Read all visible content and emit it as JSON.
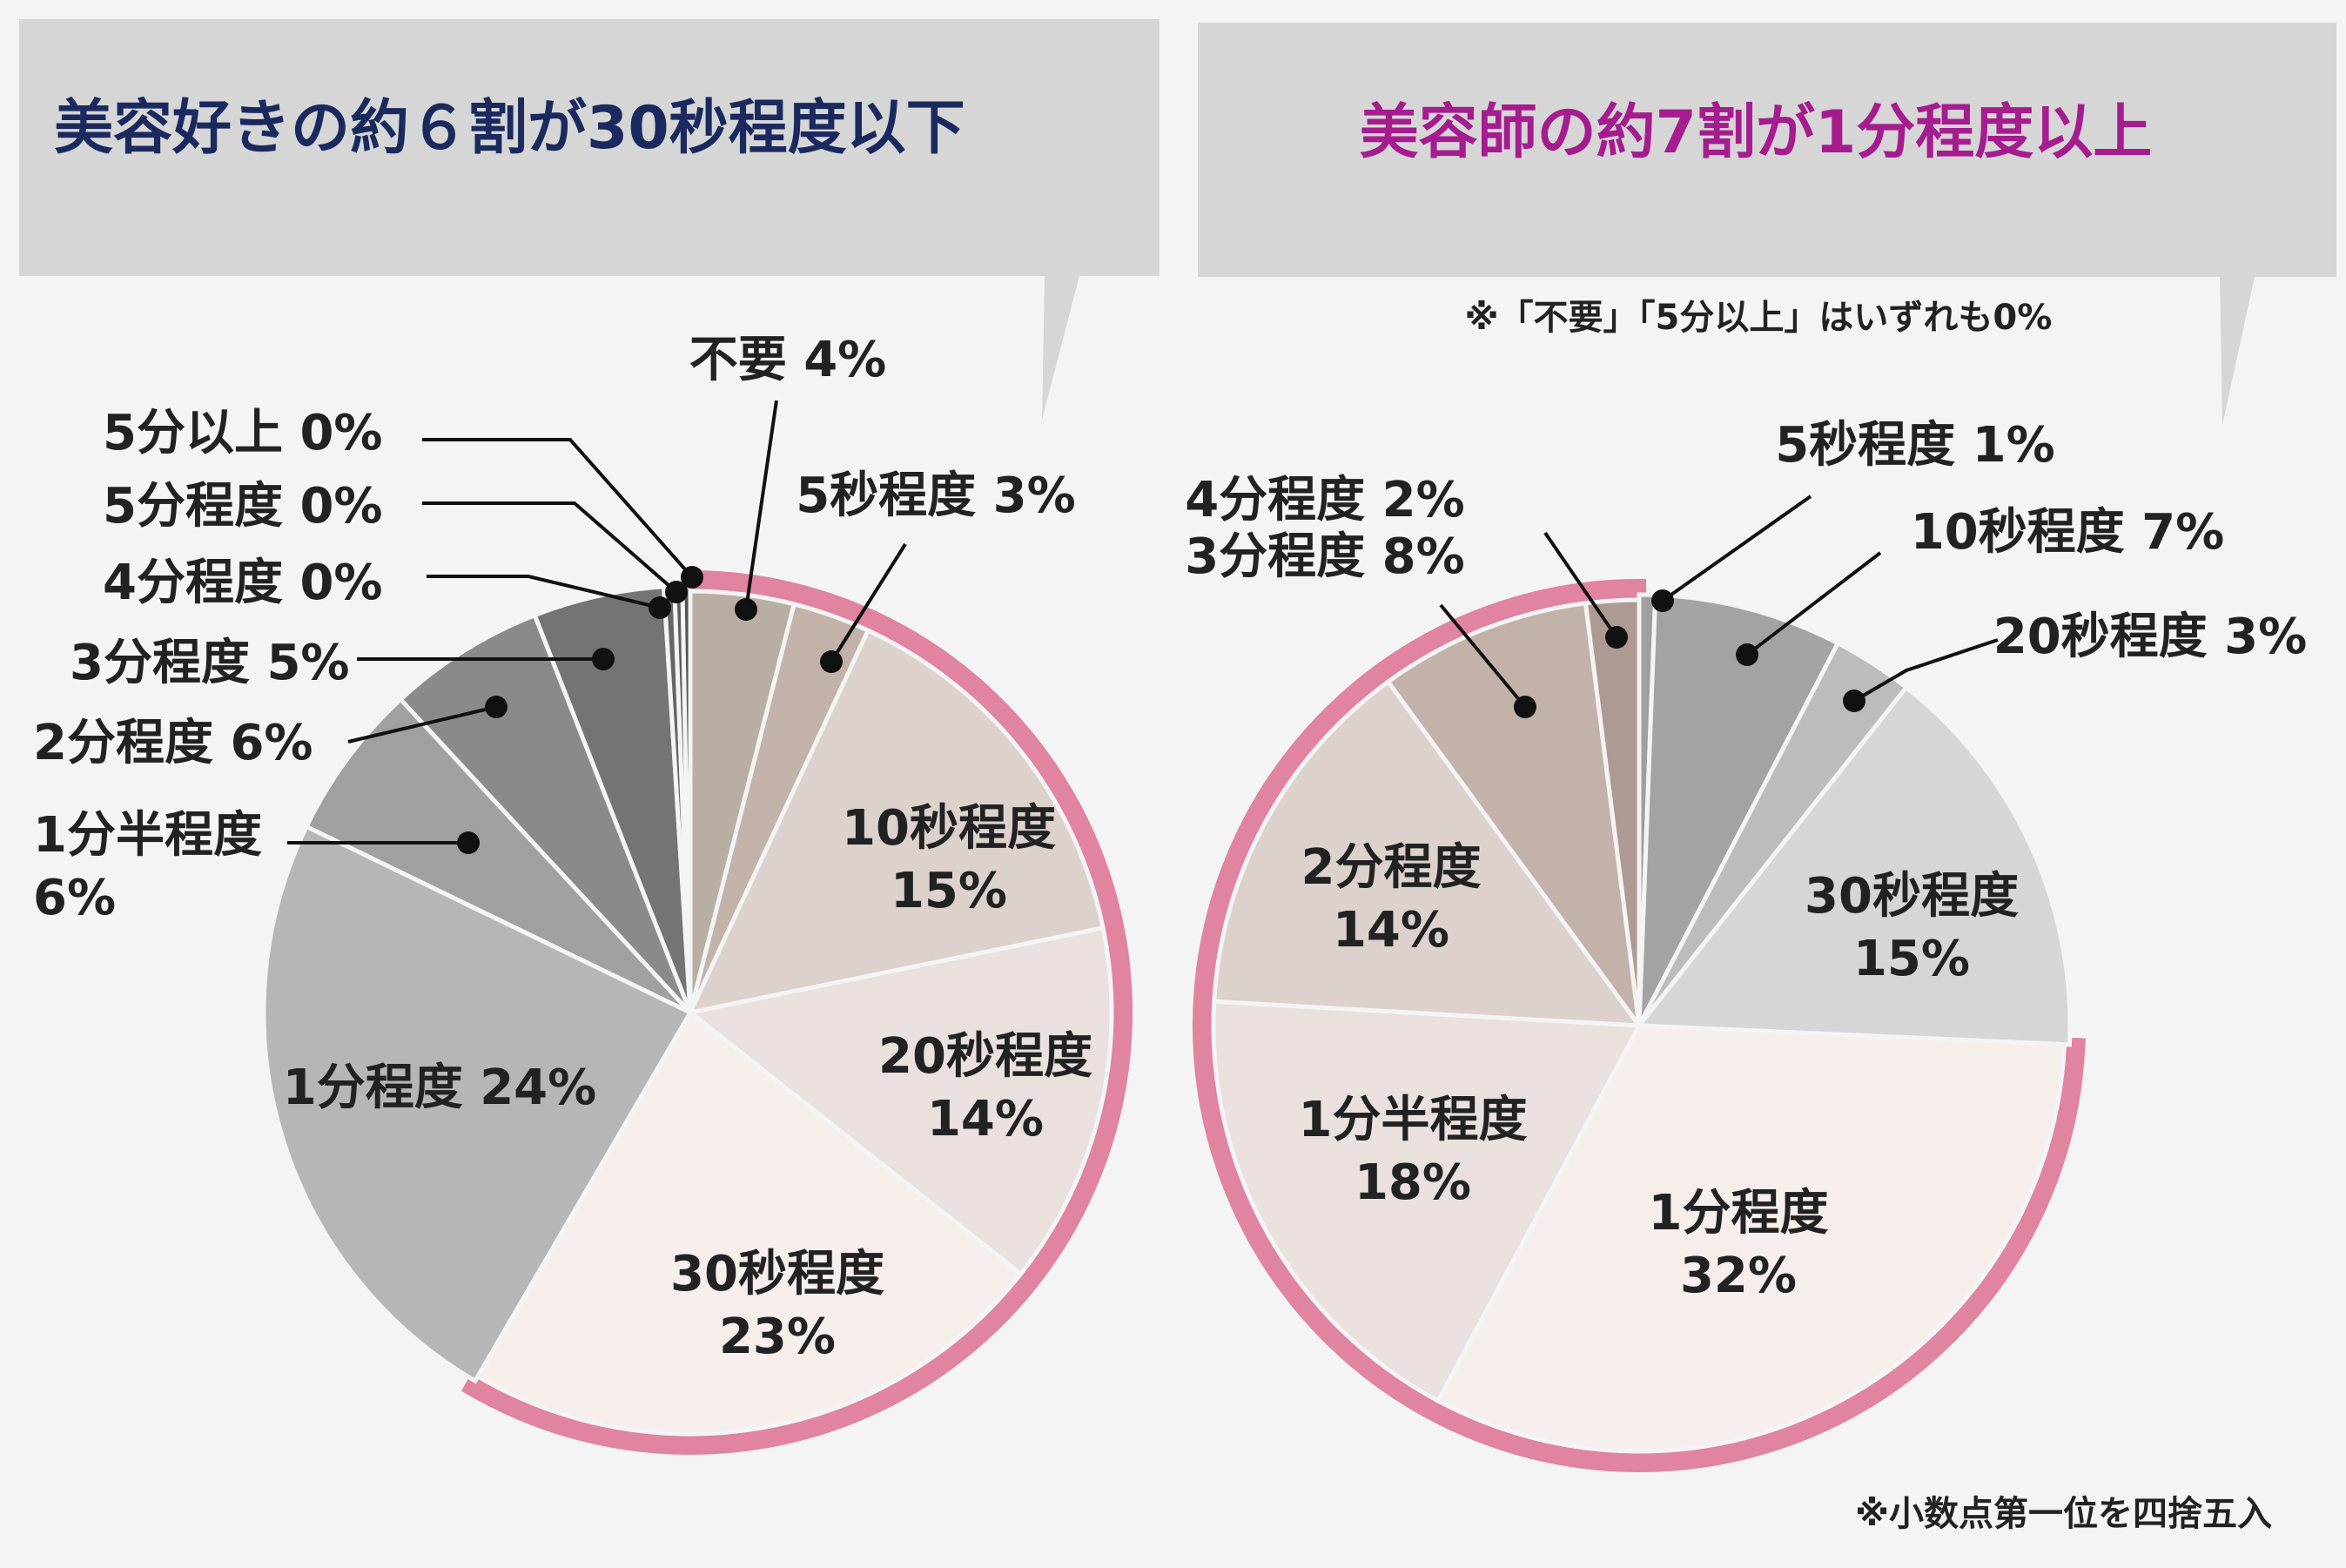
{
  "note_rounding": "※小数点第一位を四捨五入",
  "colors": {
    "background": "#f3f4f3",
    "bubble": "#d6d6d6",
    "left_title": "#1b2a5e",
    "right_title": "#a51c8f",
    "highlight": "#e0849f"
  },
  "chart_data": [
    {
      "type": "pie",
      "title": "美容好きの約６割が30秒程度以下",
      "subtitle": "",
      "unit": "%",
      "start": "12 o'clock, clockwise",
      "highlighted_group": [
        "不要",
        "5秒程度",
        "10秒程度",
        "20秒程度",
        "30秒程度"
      ],
      "slices": [
        {
          "label": "不要",
          "value_label": "4%",
          "value": 4,
          "color": "#b9aea4"
        },
        {
          "label": "5秒程度",
          "value_label": "3%",
          "value": 3,
          "color": "#c2b2aa"
        },
        {
          "label": "10秒程度",
          "value_label": "15%",
          "value": 15,
          "color": "#ddd1cd"
        },
        {
          "label": "20秒程度",
          "value_label": "14%",
          "value": 14,
          "color": "#eae0dd"
        },
        {
          "label": "30秒程度",
          "value_label": "23%",
          "value": 23,
          "color": "#f6eeeb"
        },
        {
          "label": "1分程度",
          "value_label": "24%",
          "value": 24,
          "color": "#b6b6b6"
        },
        {
          "label": "1分半程度",
          "value_label": "6%",
          "value": 6,
          "color": "#a0a0a0"
        },
        {
          "label": "2分程度",
          "value_label": "6%",
          "value": 6,
          "color": "#8a8a8a"
        },
        {
          "label": "3分程度",
          "value_label": "5%",
          "value": 5,
          "color": "#747474"
        },
        {
          "label": "4分程度",
          "value_label": "0%",
          "value": 0.4,
          "color": "#666666"
        },
        {
          "label": "5分程度",
          "value_label": "0%",
          "value": 0.3,
          "color": "#5c5c5c"
        },
        {
          "label": "5分以上",
          "value_label": "0%",
          "value": 0.3,
          "color": "#525252"
        }
      ]
    },
    {
      "type": "pie",
      "title": "美容師の約7割が1分程度以上",
      "subtitle": "※「不要」「5分以上」はいずれも0%",
      "unit": "%",
      "start": "12 o'clock, clockwise",
      "highlighted_group": [
        "1分程度",
        "1分半程度",
        "2分程度",
        "3分程度",
        "4分程度"
      ],
      "slices": [
        {
          "label": "5秒程度",
          "value_label": "1%",
          "value": 0.6,
          "color": "#9f9f9f"
        },
        {
          "label": "10秒程度",
          "value_label": "7%",
          "value": 7,
          "color": "#a3a3a3"
        },
        {
          "label": "20秒程度",
          "value_label": "3%",
          "value": 3,
          "color": "#bcbcbc"
        },
        {
          "label": "30秒程度",
          "value_label": "15%",
          "value": 15,
          "color": "#d6d6d6"
        },
        {
          "label": "1分程度",
          "value_label": "32%",
          "value": 32,
          "color": "#f6eeeb"
        },
        {
          "label": "1分半程度",
          "value_label": "18%",
          "value": 18,
          "color": "#eae0dd"
        },
        {
          "label": "2分程度",
          "value_label": "14%",
          "value": 14,
          "color": "#ddd1cd"
        },
        {
          "label": "3分程度",
          "value_label": "8%",
          "value": 8,
          "color": "#c2b2aa"
        },
        {
          "label": "4分程度",
          "value_label": "2%",
          "value": 2,
          "color": "#ad9a92"
        }
      ]
    }
  ]
}
